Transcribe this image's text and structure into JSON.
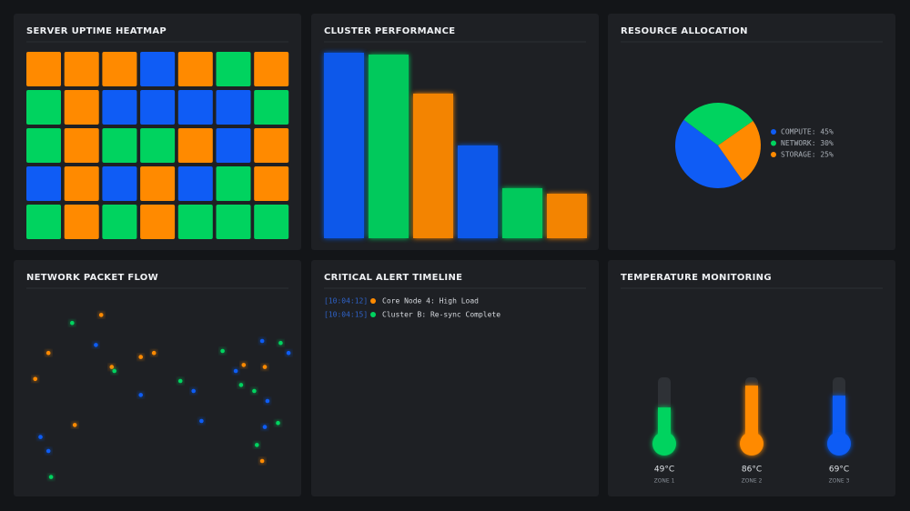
{
  "chart_data": [
    {
      "type": "heatmap",
      "title": "SERVER UPTIME HEATMAP",
      "cell_colors": [
        [
          "#ff8a00",
          "#ff8a00",
          "#ff8a00",
          "#0f5cf5",
          "#ff8a00",
          "#00d35f",
          "#ff8a00"
        ],
        [
          "#00d35f",
          "#ff8a00",
          "#0f5cf5",
          "#0f5cf5",
          "#0f5cf5",
          "#0f5cf5",
          "#00d35f"
        ],
        [
          "#00d35f",
          "#ff8a00",
          "#00d35f",
          "#00d35f",
          "#ff8a00",
          "#0f5cf5",
          "#ff8a00"
        ],
        [
          "#0f5cf5",
          "#ff8a00",
          "#0f5cf5",
          "#ff8a00",
          "#0f5cf5",
          "#00d35f",
          "#ff8a00"
        ],
        [
          "#00d35f",
          "#ff8a00",
          "#00d35f",
          "#ff8a00",
          "#00d35f",
          "#00d35f",
          "#00d35f"
        ]
      ]
    },
    {
      "type": "bar",
      "title": "CLUSTER PERFORMANCE",
      "values": [
        100,
        99,
        78,
        50,
        27,
        24
      ],
      "colors": [
        "#0f5cf5",
        "#00d35f",
        "#ff8a00",
        "#0f5cf5",
        "#00d35f",
        "#ff8a00"
      ],
      "ylim": [
        0,
        100
      ]
    },
    {
      "type": "pie",
      "title": "RESOURCE ALLOCATION",
      "values": [
        45,
        30,
        25
      ],
      "value_labels": [
        "COMPUTE: 45%",
        "NETWORK: 30%",
        "STORAGE: 25%"
      ],
      "colors": [
        "#0f5cf5",
        "#00d35f",
        "#ff8a00"
      ]
    },
    {
      "type": "scatter",
      "title": "NETWORK PACKET FLOW",
      "x": [
        17,
        28,
        8,
        26,
        3,
        32,
        33,
        43,
        48,
        43,
        58,
        63,
        66,
        18,
        5,
        8,
        9,
        74,
        79,
        82,
        81,
        86,
        89,
        96,
        99,
        90,
        91,
        90,
        95,
        87,
        89
      ],
      "values": [
        84,
        88,
        69,
        73,
        56,
        62,
        60,
        67,
        69,
        48,
        55,
        50,
        35,
        33,
        27,
        20,
        7,
        70,
        60,
        63,
        53,
        50,
        75,
        74,
        69,
        62,
        45,
        32,
        34,
        23,
        15
      ],
      "colors": [
        "#00d35f",
        "#ff8a00",
        "#ff8a00",
        "#0f5cf5",
        "#ff8a00",
        "#ff8a00",
        "#00d35f",
        "#ff8a00",
        "#ff8a00",
        "#0f5cf5",
        "#00d35f",
        "#0f5cf5",
        "#0f5cf5",
        "#ff8a00",
        "#0f5cf5",
        "#0f5cf5",
        "#00d35f",
        "#00d35f",
        "#0f5cf5",
        "#ff8a00",
        "#00d35f",
        "#00d35f",
        "#0f5cf5",
        "#00d35f",
        "#0f5cf5",
        "#ff8a00",
        "#0f5cf5",
        "#0f5cf5",
        "#00d35f",
        "#00d35f",
        "#ff8a00"
      ],
      "xlim": [
        0,
        100
      ],
      "ylim": [
        0,
        100
      ]
    },
    {
      "type": "thermometer",
      "title": "TEMPERATURE MONITORING",
      "categories": [
        "ZONE 1",
        "ZONE 2",
        "ZONE 3"
      ],
      "values": [
        49,
        86,
        69
      ],
      "value_labels": [
        "49°C",
        "86°C",
        "69°C"
      ],
      "colors": [
        "#00d35f",
        "#ff8a00",
        "#0f5cf5"
      ],
      "ylim": [
        0,
        100
      ]
    }
  ],
  "alerts": {
    "title": "CRITICAL ALERT TIMELINE",
    "items": [
      {
        "time": "[10:04:12]",
        "text": "Core Node 4: High Load",
        "color": "#ff8a00"
      },
      {
        "time": "[10:04:15]",
        "text": "Cluster B: Re-sync Complete",
        "color": "#00d35f"
      }
    ]
  }
}
